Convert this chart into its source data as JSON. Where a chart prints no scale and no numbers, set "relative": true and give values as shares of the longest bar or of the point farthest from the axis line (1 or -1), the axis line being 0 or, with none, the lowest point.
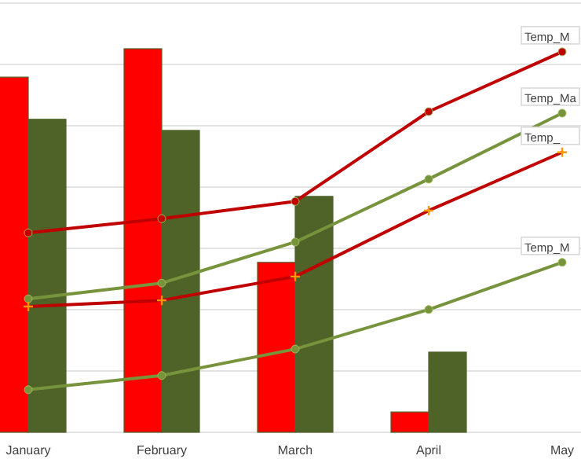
{
  "chart_data": {
    "type": "bar",
    "relative": true,
    "grid": "y",
    "categories": [
      "January",
      "February",
      "March",
      "April",
      "May"
    ],
    "series": [
      {
        "color": "#ff0000",
        "values": [
          0.926,
          1,
          0.443,
          0.053,
          null
        ]
      },
      {
        "color": "#4f6228",
        "values": [
          0.816,
          0.787,
          0.615,
          0.209,
          null
        ]
      },
      {
        "type": "line",
        "name": "Temp_M",
        "color": "#c00000",
        "marker": "circle",
        "values": [
          0.52,
          0.557,
          0.602,
          0.836,
          0.992
        ]
      },
      {
        "type": "line",
        "name": "Temp_Ma",
        "color": "#77933c",
        "marker": "circle",
        "values": [
          0.348,
          0.389,
          0.496,
          0.66,
          0.832
        ]
      },
      {
        "type": "line",
        "name": "Temp_",
        "color": "#c00000",
        "marker": "cross",
        "values": [
          0.328,
          0.344,
          0.406,
          0.578,
          0.73
        ]
      },
      {
        "type": "line",
        "name": "Temp_M",
        "color": "#77933c",
        "marker": "circle",
        "values": [
          0.111,
          0.148,
          0.217,
          0.32,
          0.443
        ]
      }
    ]
  }
}
